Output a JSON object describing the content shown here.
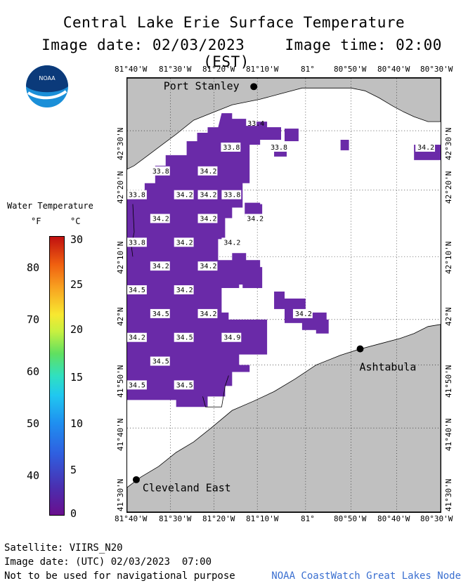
{
  "header": {
    "title": "Central Lake Erie Surface Temperature",
    "image_date": "Image date: 02/03/2023",
    "image_time": "Image time: 02:00 (EST)"
  },
  "logo": {
    "text": "NOAA",
    "icon": "noaa-logo"
  },
  "longitude_labels": [
    "81°40'W",
    "81°30'W",
    "81°20'W",
    "81°10'W",
    "81°",
    "80°50'W",
    "80°40'W",
    "80°30'W"
  ],
  "latitude_labels": [
    "42°30'N",
    "42°20'N",
    "42°10'N",
    "42°N",
    "41°50'N",
    "41°40'N",
    "41°30'N"
  ],
  "places": [
    {
      "name": "Port Stanley"
    },
    {
      "name": "Ashtabula"
    },
    {
      "name": "Cleveland East"
    }
  ],
  "temperature_labels": [
    "33.4",
    "33.8",
    "33.8",
    "34.2",
    "33.8",
    "34.2",
    "34.2",
    "33.8",
    "34.2",
    "33.8",
    "34.2",
    "34.2",
    "34.2",
    "33.8",
    "34.2",
    "34.2",
    "34.2",
    "34.2",
    "34.5",
    "34.2",
    "34.5",
    "34.2",
    "34.2",
    "34.2",
    "34.5",
    "34.9",
    "34.5",
    "34.5",
    "34.5"
  ],
  "legend": {
    "title": "Water Temperature",
    "unit_f": "°F",
    "unit_c": "°C",
    "ticks_f": [
      "80",
      "70",
      "60",
      "50",
      "40"
    ],
    "ticks_c": [
      "30",
      "25",
      "20",
      "15",
      "10",
      "5",
      "0"
    ]
  },
  "footer": {
    "satellite": "Satellite: VIIRS_N20",
    "utc_date": "Image date: (UTC) 02/03/2023  07:00",
    "disclaimer": "Not to be used for navigational purpose",
    "credit": "NOAA CoastWatch Great Lakes Node"
  },
  "colors": {
    "land": "#c0c0c0",
    "water_no_data": "#ffffff",
    "water_temp": "#6a2aa8",
    "credit_text": "#3a6fd0"
  }
}
